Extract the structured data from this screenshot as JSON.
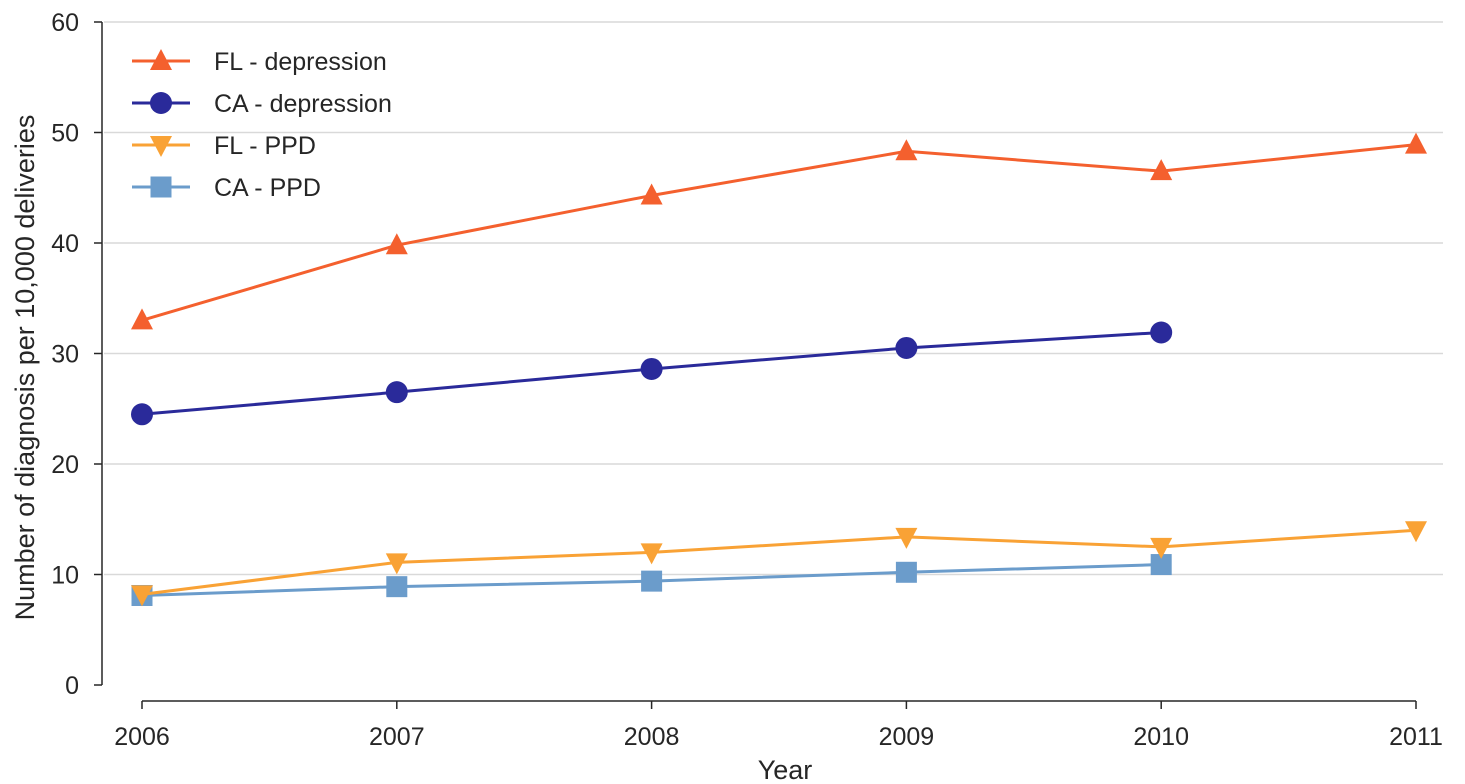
{
  "chart_data": {
    "type": "line",
    "title": "",
    "xlabel": "Year",
    "ylabel": "Number of diagnosis per 10,000 deliveries",
    "x": [
      2006,
      2007,
      2008,
      2009,
      2010,
      2011
    ],
    "xticks": [
      "2006",
      "2007",
      "2008",
      "2009",
      "2010",
      "2011"
    ],
    "yticks": [
      "0",
      "10",
      "20",
      "30",
      "40",
      "50",
      "60"
    ],
    "ylim": [
      0,
      60
    ],
    "grid": "horizontal",
    "legend_position": "top-left",
    "series": [
      {
        "name": "FL - depression",
        "color": "#f4602e",
        "marker": "triangle-up",
        "values": [
          33.0,
          39.8,
          44.3,
          48.3,
          46.5,
          48.9
        ]
      },
      {
        "name": "CA - depression",
        "color": "#2a2a9a",
        "marker": "circle",
        "values": [
          24.5,
          26.5,
          28.6,
          30.5,
          31.9,
          null
        ]
      },
      {
        "name": "FL - PPD",
        "color": "#f9a235",
        "marker": "triangle-down",
        "values": [
          8.2,
          11.1,
          12.0,
          13.4,
          12.5,
          14.0
        ]
      },
      {
        "name": "CA - PPD",
        "color": "#6b9ccb",
        "marker": "square",
        "values": [
          8.1,
          8.9,
          9.4,
          10.2,
          10.9,
          null
        ]
      }
    ]
  }
}
